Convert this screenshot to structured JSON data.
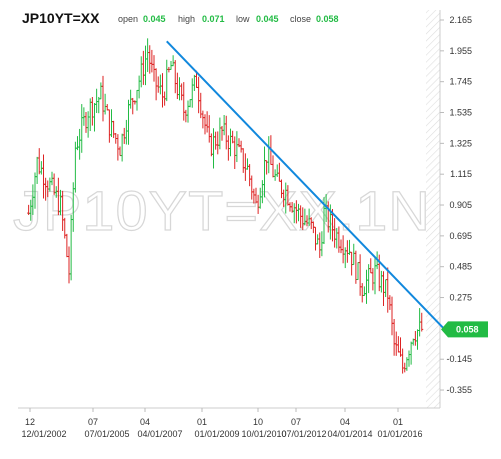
{
  "header": {
    "symbol": "JP10YT=XX",
    "open_label": "open",
    "open_value": "0.045",
    "high_label": "high",
    "high_value": "0.071",
    "low_label": "low",
    "low_value": "0.045",
    "close_label": "close",
    "close_value": "0.058"
  },
  "watermark": "JP10YT=XX.1N",
  "last_price_badge": "0.058",
  "colors": {
    "up": "#22bb44",
    "down": "#dd2222",
    "trendline": "#1188dd",
    "badge": "#22bb44"
  },
  "chart_data": {
    "type": "ohlc",
    "title": "JP10YT=XX",
    "yticks": [
      "2.165",
      "1.955",
      "1.745",
      "1.535",
      "1.325",
      "1.115",
      "0.905",
      "0.695",
      "0.485",
      "0.275",
      "0.058",
      "-0.145",
      "-0.355"
    ],
    "ylim": [
      -0.45,
      2.165
    ],
    "xticks_top": [
      "12",
      "07",
      "04",
      "01",
      "10",
      "07",
      "04",
      "01"
    ],
    "xticks_bottom": [
      "12/01/2002",
      "07/01/2005",
      "04/01/2007",
      "01/01/2009",
      "10/01/2010",
      "07/01/2012",
      "04/01/2014",
      "01/01/2016"
    ],
    "xlim": [
      "2001-06",
      "2017-06"
    ],
    "last_close": 0.058,
    "trendline": {
      "start": [
        "2007-04",
        2.02
      ],
      "end": [
        "2017-05",
        0.09
      ]
    },
    "key_points": [
      [
        "2001-11",
        0.85
      ],
      [
        "2002-03",
        1.2
      ],
      [
        "2003-02",
        0.9
      ],
      [
        "2003-06",
        0.45
      ],
      [
        "2003-09",
        1.3
      ],
      [
        "2004-03",
        1.55
      ],
      [
        "2004-09",
        1.65
      ],
      [
        "2005-01",
        1.45
      ],
      [
        "2005-06",
        1.3
      ],
      [
        "2005-10",
        1.55
      ],
      [
        "2006-04",
        1.8
      ],
      [
        "2006-07",
        1.95
      ],
      [
        "2006-10",
        1.75
      ],
      [
        "2007-02",
        1.65
      ],
      [
        "2007-06",
        1.85
      ],
      [
        "2007-12",
        1.55
      ],
      [
        "2008-06",
        1.75
      ],
      [
        "2008-12",
        1.3
      ],
      [
        "2009-06",
        1.4
      ],
      [
        "2009-12",
        1.3
      ],
      [
        "2010-06",
        1.15
      ],
      [
        "2010-10",
        0.9
      ],
      [
        "2011-03",
        1.25
      ],
      [
        "2011-08",
        1.05
      ],
      [
        "2011-12",
        1.0
      ],
      [
        "2012-06",
        0.85
      ],
      [
        "2012-12",
        0.75
      ],
      [
        "2013-04",
        0.6
      ],
      [
        "2013-06",
        0.85
      ],
      [
        "2013-12",
        0.7
      ],
      [
        "2014-06",
        0.6
      ],
      [
        "2014-12",
        0.35
      ],
      [
        "2015-06",
        0.45
      ],
      [
        "2015-12",
        0.3
      ],
      [
        "2016-03",
        -0.05
      ],
      [
        "2016-07",
        -0.2
      ],
      [
        "2016-10",
        -0.06
      ],
      [
        "2016-12",
        0.04
      ],
      [
        "2017-04",
        0.058
      ]
    ]
  }
}
